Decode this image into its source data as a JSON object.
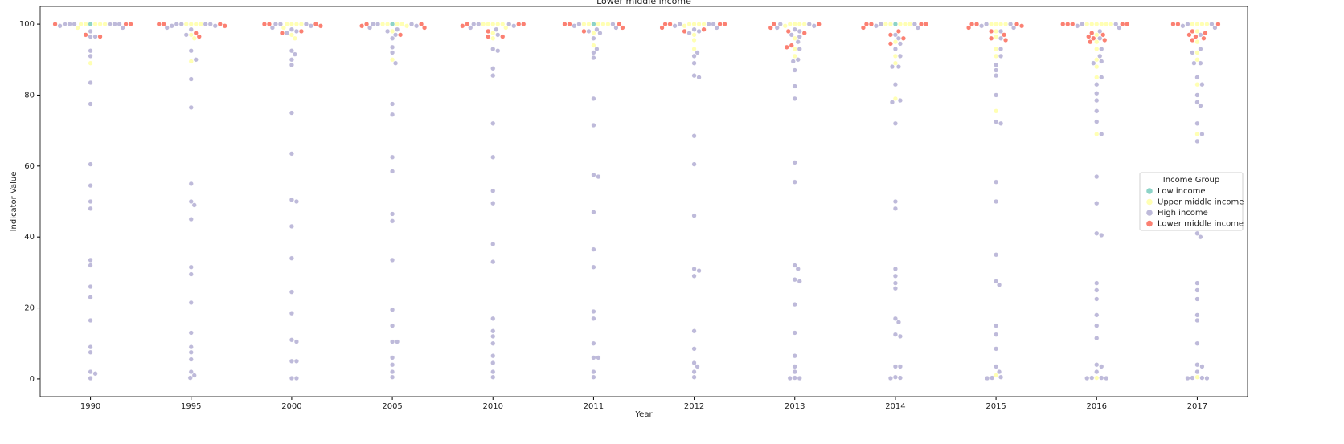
{
  "chart_data": {
    "type": "swarm",
    "title": "Lower middle income",
    "x_label": "Year",
    "y_label": "Indicator Value",
    "categories": [
      "1990",
      "1995",
      "2000",
      "2005",
      "2010",
      "2011",
      "2012",
      "2013",
      "2014",
      "2015",
      "2016",
      "2017"
    ],
    "ylim": [
      -5,
      105
    ],
    "yticks": [
      0,
      20,
      40,
      60,
      80,
      100
    ],
    "legend": {
      "title": "Income Group",
      "position": "right"
    },
    "series": [
      {
        "name": "Low income",
        "color": "#8dd3c7",
        "values": [
          [
            100
          ],
          [],
          [],
          [
            100
          ],
          [],
          [
            100
          ],
          [],
          [],
          [
            100
          ],
          [],
          [],
          []
        ]
      },
      {
        "name": "Upper middle income",
        "color": "#ffffb3",
        "values": [
          [
            100,
            100,
            100,
            100,
            100,
            99,
            89
          ],
          [
            100,
            100,
            100,
            100,
            97,
            96,
            89.5
          ],
          [
            100,
            100,
            100,
            100,
            99,
            97,
            96
          ],
          [
            100,
            100,
            100,
            100,
            99.5,
            98,
            90
          ],
          [
            100,
            100,
            100,
            100,
            100,
            99,
            97.5,
            96
          ],
          [
            100,
            100,
            100,
            100,
            100,
            97.5,
            94
          ],
          [
            100,
            100,
            100,
            100,
            99.5,
            97,
            95.5,
            93
          ],
          [
            100,
            100,
            100,
            100,
            99.5,
            96,
            93,
            91
          ],
          [
            100,
            100,
            100,
            100,
            100,
            95,
            91,
            89,
            79
          ],
          [
            100,
            100,
            100,
            100,
            98,
            96.5,
            93,
            91,
            75.5,
            1
          ],
          [
            100,
            100,
            100,
            100,
            100,
            100,
            97,
            95,
            93,
            90,
            88,
            85,
            69,
            0.3
          ],
          [
            100,
            100,
            100,
            100,
            98,
            95,
            92,
            90,
            83,
            69,
            0.5
          ]
        ]
      },
      {
        "name": "High income",
        "color": "#bebada",
        "values": [
          [
            100,
            100,
            100,
            100,
            100,
            100,
            99.5,
            99,
            98,
            96.5,
            96.5,
            92.5,
            91,
            83.5,
            77.5,
            60.5,
            54.5,
            50,
            48,
            33.5,
            32,
            26,
            23,
            16.5,
            9,
            7.5,
            2,
            1.5,
            0.2
          ],
          [
            100,
            100,
            100,
            100,
            99.5,
            99.5,
            99,
            98.5,
            97,
            92.5,
            90,
            84.5,
            76.5,
            55,
            50,
            49,
            45,
            31.5,
            29.5,
            21.5,
            13,
            9,
            7.5,
            5.5,
            2,
            1,
            0.3
          ],
          [
            100,
            100,
            100,
            99.5,
            99,
            98.5,
            98,
            97.5,
            92.5,
            91.5,
            90,
            88.5,
            75,
            63.5,
            50.5,
            50,
            43,
            34,
            24.5,
            18.5,
            11,
            10.5,
            5,
            5,
            0.2,
            0.2
          ],
          [
            100,
            100,
            100,
            99.5,
            99,
            98.5,
            98,
            97,
            96,
            93.5,
            92,
            89,
            77.5,
            74.5,
            62.5,
            58.5,
            46.5,
            44.5,
            33.5,
            19.5,
            15,
            10.5,
            10.5,
            6,
            4,
            2,
            0.5
          ],
          [
            100,
            100,
            100,
            99.5,
            99,
            98.5,
            97,
            93,
            92.5,
            87.5,
            85.5,
            72,
            62.5,
            53,
            49.5,
            38,
            33,
            17,
            13.5,
            12,
            10,
            6.5,
            4.5,
            2,
            0.5
          ],
          [
            100,
            100,
            99.5,
            99,
            98.5,
            98,
            97.5,
            96,
            93,
            92,
            90.5,
            79,
            71.5,
            57.5,
            57,
            47,
            36.5,
            31.5,
            19,
            17,
            10,
            6,
            6,
            2,
            0.5
          ],
          [
            100,
            100,
            100,
            99.5,
            99,
            98.5,
            98,
            97.5,
            92,
            91,
            89,
            85.5,
            85,
            68.5,
            60.5,
            46,
            31,
            30.5,
            29,
            13.5,
            8.5,
            4.5,
            3.5,
            2,
            0.5
          ],
          [
            100,
            100,
            99.5,
            99,
            98.5,
            98,
            97,
            96.5,
            95,
            93,
            90,
            89.5,
            87,
            82.5,
            79,
            61,
            55.5,
            32,
            31,
            28,
            27.5,
            21,
            13,
            6.5,
            3.5,
            2,
            0.3,
            0.2,
            0.2
          ],
          [
            100,
            100,
            99.5,
            99,
            97,
            96,
            94.5,
            93,
            91,
            88,
            88,
            83,
            78.5,
            78,
            72,
            50,
            48,
            31,
            29,
            27,
            25.5,
            17,
            16,
            12.5,
            12,
            3.5,
            3.5,
            0.5,
            0.3,
            0.2
          ],
          [
            100,
            100,
            99.5,
            99,
            98,
            96,
            93,
            91,
            88.5,
            87,
            85.5,
            80,
            72.5,
            72,
            55.5,
            50,
            35,
            27.5,
            26.5,
            15,
            12.5,
            8.5,
            3.5,
            2,
            0.5,
            0.3,
            0.2
          ],
          [
            100,
            100,
            99.5,
            99,
            98,
            96,
            93,
            91,
            89.5,
            89,
            85,
            83,
            80.5,
            78.5,
            75.5,
            72.5,
            69,
            57,
            49.5,
            41,
            40.5,
            27,
            25,
            22.5,
            18,
            15,
            11.5,
            4,
            3.5,
            2,
            0.3,
            0.3,
            0.2,
            0.2
          ],
          [
            100,
            100,
            99.5,
            99,
            97,
            93,
            92,
            89,
            89,
            85,
            83,
            80,
            78,
            77,
            72,
            69,
            67,
            56,
            50,
            41,
            40,
            27,
            25,
            22.5,
            18,
            16.5,
            10,
            4,
            3.5,
            2,
            0.3,
            0.3,
            0.2,
            0.2
          ]
        ]
      },
      {
        "name": "Lower middle income",
        "color": "#fb8072",
        "values": [
          [
            100,
            100,
            100,
            97,
            96.5
          ],
          [
            100,
            100,
            100,
            99.5,
            97.5,
            96.5
          ],
          [
            100,
            100,
            100,
            99.5,
            98,
            97.5
          ],
          [
            100,
            100,
            99.5,
            99,
            97
          ],
          [
            100,
            100,
            100,
            99.5,
            98,
            96.5,
            96.5
          ],
          [
            100,
            100,
            100,
            99,
            98
          ],
          [
            100,
            100,
            100,
            100,
            99,
            98.5,
            98
          ],
          [
            100,
            100,
            99,
            98,
            97.5,
            94,
            93.5
          ],
          [
            100,
            100,
            100,
            100,
            99,
            98,
            97,
            96,
            94.5
          ],
          [
            100,
            100,
            100,
            99.5,
            99,
            98,
            97,
            96,
            95.5
          ],
          [
            100,
            100,
            100,
            100,
            100,
            97.5,
            97,
            96.5,
            96,
            95.5,
            95
          ],
          [
            100,
            100,
            100,
            98,
            97.5,
            97,
            96.5,
            96,
            95.5
          ]
        ]
      }
    ]
  }
}
